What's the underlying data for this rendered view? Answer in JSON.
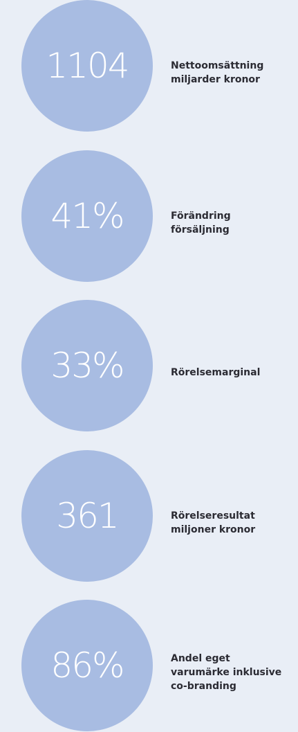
{
  "items": [
    {
      "value": "1104",
      "label": [
        "Nettoomsättning",
        "miljarder kronor"
      ]
    },
    {
      "value": "41%",
      "label": [
        "Förändring",
        "försäljning"
      ]
    },
    {
      "value": "33%",
      "label": [
        "Rörelsemarginal"
      ]
    },
    {
      "value": "361",
      "label": [
        "Rörelseresultat",
        "miljoner kronor"
      ]
    },
    {
      "value": "86%",
      "label": [
        "Andel eget",
        "varumärke inklusive",
        "co-branding"
      ]
    }
  ]
}
